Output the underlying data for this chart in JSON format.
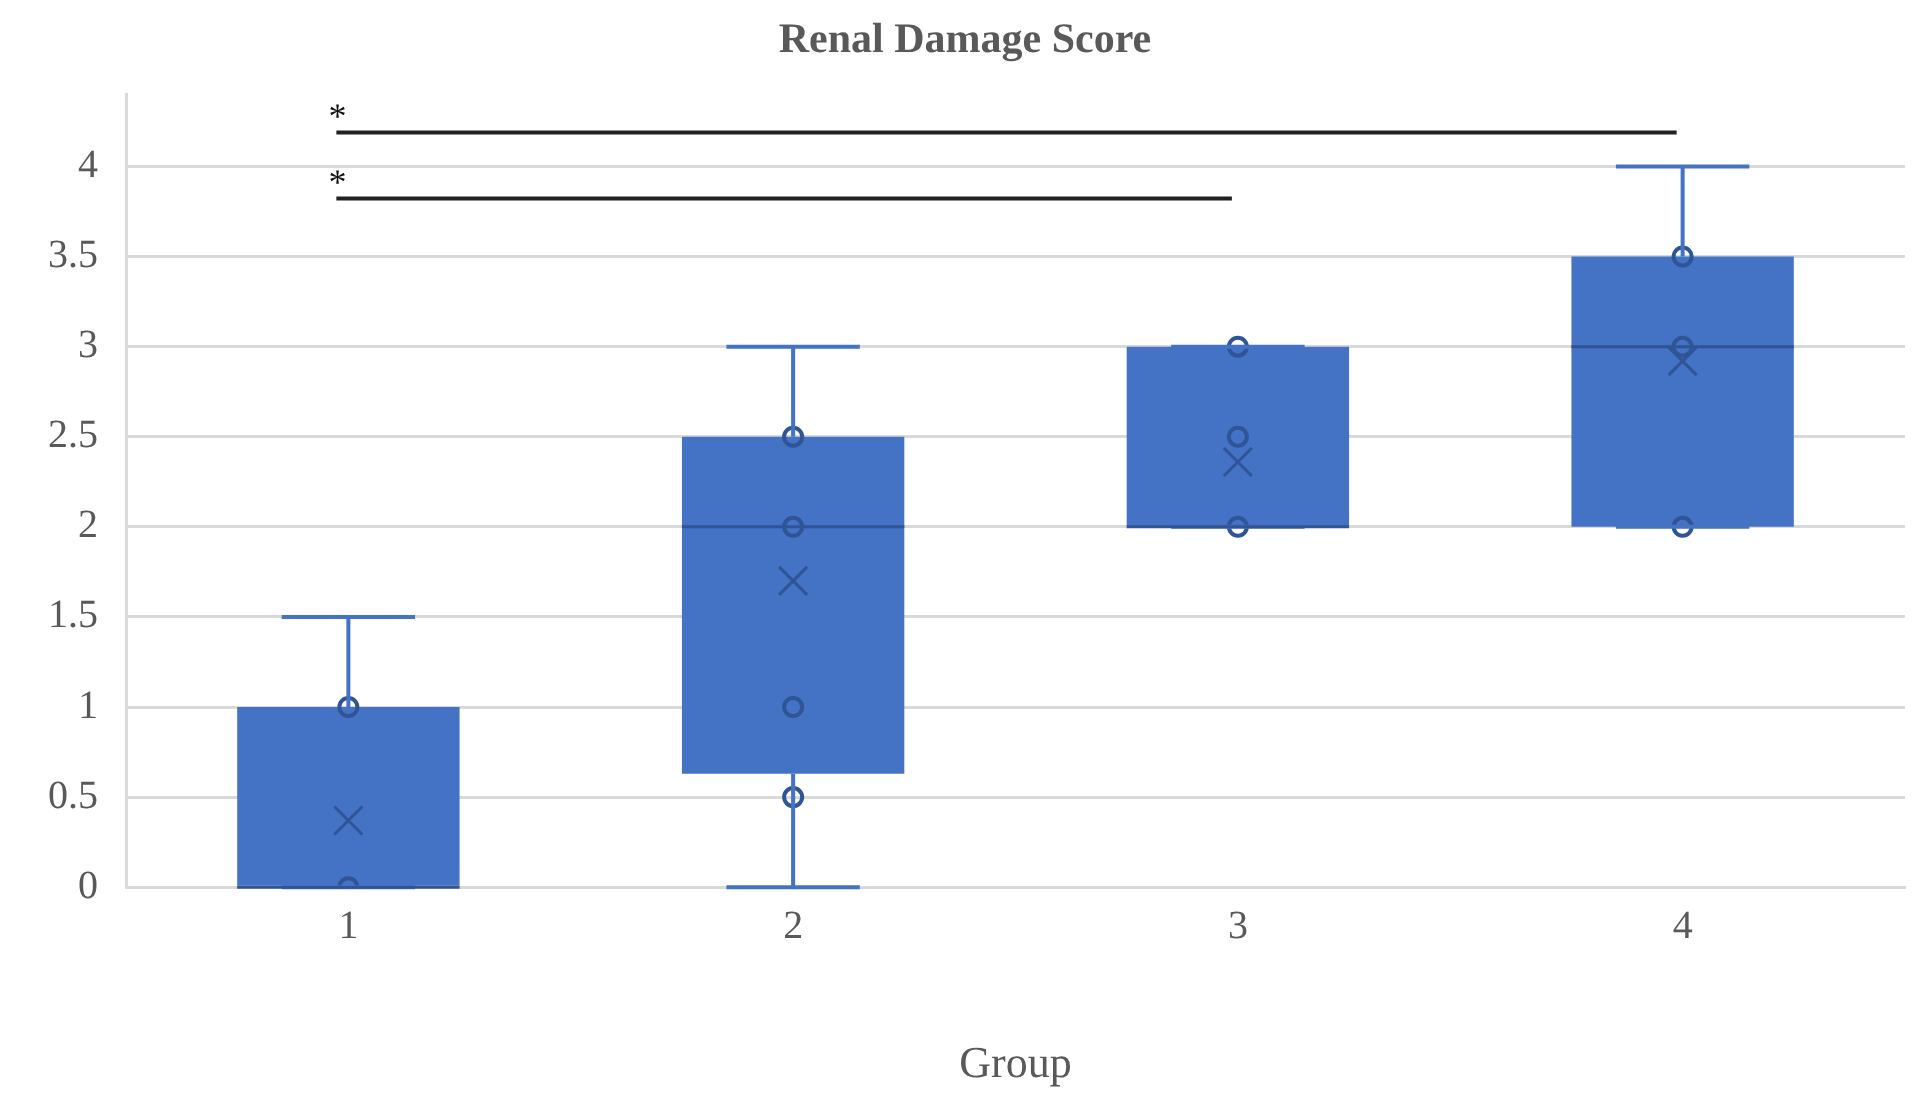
{
  "chart_data": {
    "type": "box",
    "title": "Renal Damage Score",
    "xlabel": "Group",
    "categories": [
      "1",
      "2",
      "3",
      "4"
    ],
    "series": [
      {
        "type": "box",
        "color": "#4472c4",
        "boxes": [
          {
            "low": 0,
            "q1": 0,
            "median": 0,
            "q3": 1,
            "high": 1.5,
            "mean": 0.37
          },
          {
            "low": 0,
            "q1": 0.63,
            "median": 2,
            "q3": 2.5,
            "high": 3,
            "mean": 1.7
          },
          {
            "low": 2,
            "q1": 2,
            "median": 2,
            "q3": 3,
            "high": 3,
            "mean": 2.36
          },
          {
            "low": 2,
            "q1": 2,
            "median": 3,
            "q3": 3.5,
            "high": 4,
            "mean": 2.92
          }
        ]
      },
      {
        "type": "scatter",
        "color": "#2f5597",
        "x": [
          "1",
          "1",
          "2",
          "2",
          "2",
          "2",
          "3",
          "3",
          "3",
          "4",
          "4",
          "4"
        ],
        "values": [
          0,
          1,
          0.5,
          1,
          2,
          2.5,
          2,
          2.5,
          3,
          2,
          3,
          3.5
        ]
      }
    ],
    "ylim": [
      0,
      4.4
    ],
    "yticks": [
      0,
      0.5,
      1,
      1.5,
      2,
      2.5,
      3,
      3.5,
      4
    ],
    "grid": "y",
    "legend": false,
    "annotations": [
      "*",
      "*"
    ]
  }
}
